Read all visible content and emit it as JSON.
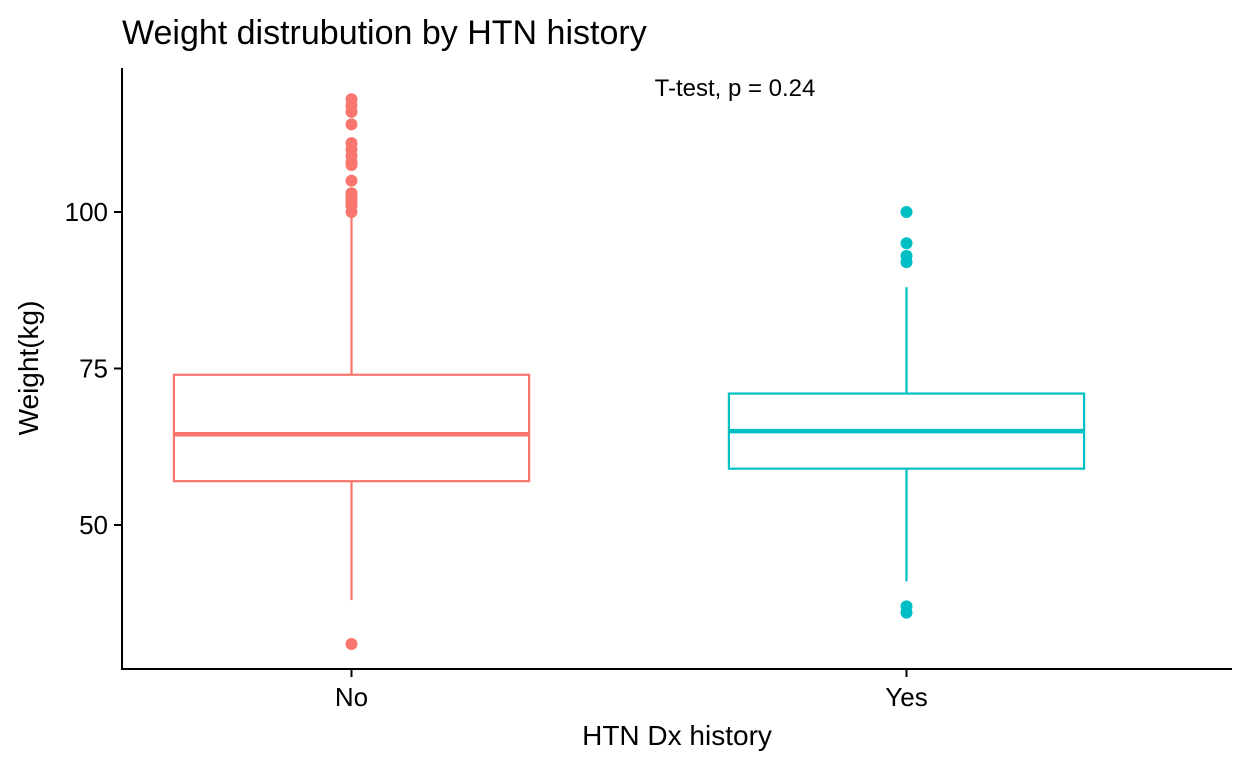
{
  "chart_data": {
    "type": "box",
    "title": "Weight distrubution by HTN history",
    "annotation": "T-test, p = 0.24",
    "xlabel": "HTN Dx history",
    "ylabel": "Weight(kg)",
    "ylim": [
      27,
      123
    ],
    "yticks": [
      50,
      75,
      100
    ],
    "grid": false,
    "legend": "none",
    "categories": [
      "No",
      "Yes"
    ],
    "colors": [
      "#F8766D",
      "#00BFC4"
    ],
    "boxes": [
      {
        "category": "No",
        "whisker_low": 38,
        "q1": 57,
        "median": 64.5,
        "q3": 74,
        "whisker_high": 99.5,
        "outliers": [
          31,
          100,
          101,
          101.5,
          102,
          102.5,
          103,
          105,
          107.5,
          108,
          109,
          110,
          111,
          114,
          116,
          117,
          118
        ]
      },
      {
        "category": "Yes",
        "whisker_low": 41,
        "q1": 59,
        "median": 65,
        "q3": 71,
        "whisker_high": 88,
        "outliers": [
          36,
          37,
          92,
          93,
          95,
          100
        ]
      }
    ]
  }
}
